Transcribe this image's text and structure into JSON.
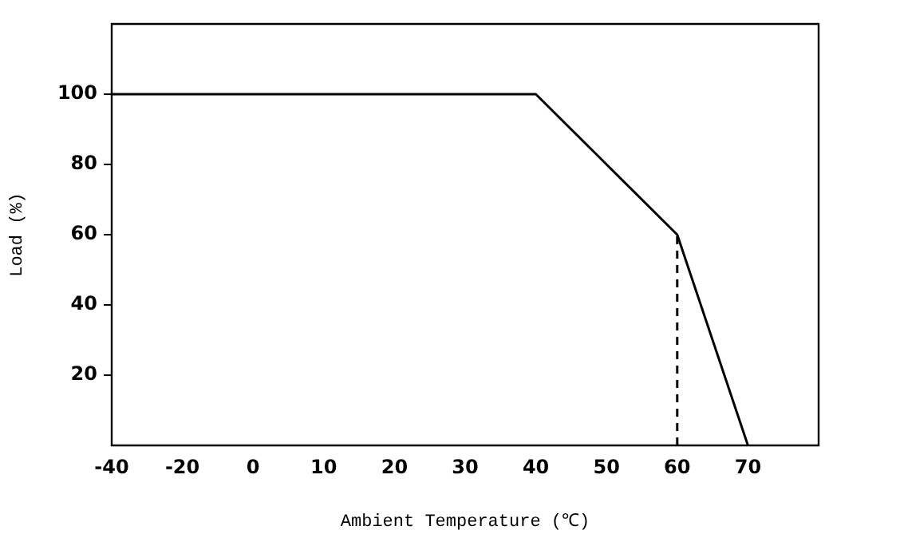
{
  "chart_data": {
    "type": "line",
    "xlabel": "Ambient Temperature (℃)",
    "ylabel": "Load (%)",
    "categories": [
      "-40",
      "-20",
      "0",
      "10",
      "20",
      "30",
      "40",
      "50",
      "60",
      "70",
      null
    ],
    "series": [
      {
        "color": "#000000",
        "values": [
          100,
          100,
          100,
          100,
          100,
          100,
          100,
          80,
          60,
          0,
          null
        ]
      }
    ],
    "ylim": [
      0,
      120
    ],
    "yticks": [
      20,
      40,
      60,
      80,
      100
    ],
    "ref_lines": [
      {
        "axis": "x",
        "value": "60",
        "line_style": "dashed",
        "color": "#000000"
      }
    ],
    "grid": false,
    "legend": false,
    "marker": "none",
    "line_style": "solid"
  }
}
